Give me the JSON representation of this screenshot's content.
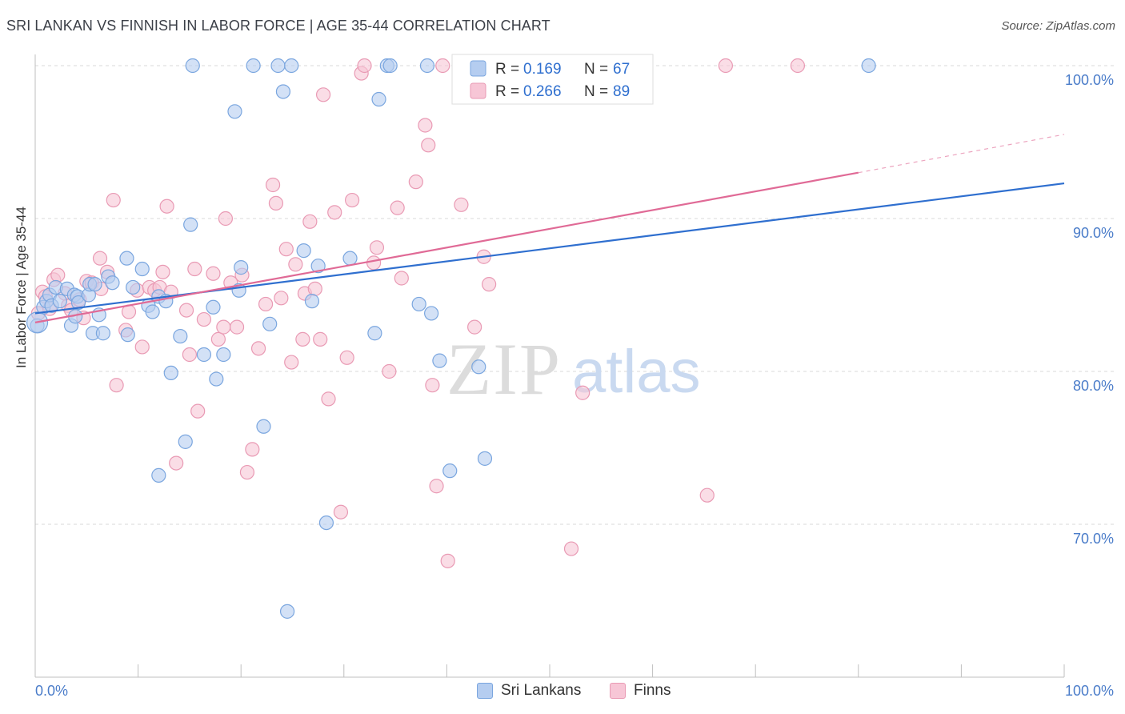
{
  "title": "SRI LANKAN VS FINNISH IN LABOR FORCE | AGE 35-44 CORRELATION CHART",
  "source": "Source: ZipAtlas.com",
  "watermark": {
    "zip": "ZIP",
    "atlas": "atlas"
  },
  "colors": {
    "blue_fill": "#b5cdf0",
    "blue_stroke": "#7aa6df",
    "blue_line": "#2f6fcf",
    "pink_fill": "#f7c6d6",
    "pink_stroke": "#e99ab4",
    "pink_line": "#e06a96",
    "tick_text": "#4a7cc9",
    "grid": "#d8d8d8"
  },
  "legend_top": [
    {
      "r_label": "R =",
      "r_value": "0.169",
      "n_label": "N =",
      "n_value": "67"
    },
    {
      "r_label": "R =",
      "r_value": "0.266",
      "n_label": "N =",
      "n_value": "89"
    }
  ],
  "legend_bottom": [
    "Sri Lankans",
    "Finns"
  ],
  "chart_data": {
    "type": "scatter",
    "title": "SRI LANKAN VS FINNISH IN LABOR FORCE | AGE 35-44 CORRELATION CHART",
    "xlabel": "",
    "ylabel": "In Labor Force | Age 35-44",
    "xlim": [
      0,
      100
    ],
    "ylim": [
      60,
      102
    ],
    "x_tick_labels": [
      "0.0%",
      "100.0%"
    ],
    "y_ticks": [
      70,
      80,
      90,
      100
    ],
    "y_tick_labels": [
      "70.0%",
      "80.0%",
      "90.0%",
      "100.0%"
    ],
    "grid": true,
    "legend_position": "top-center",
    "series": [
      {
        "name": "Sri Lankans",
        "r": 0.169,
        "n": 67,
        "trend": {
          "x": [
            0,
            100
          ],
          "y": [
            83.8,
            92.3
          ]
        },
        "points": [
          [
            0.2,
            83.0
          ],
          [
            0.8,
            84.2
          ],
          [
            1.1,
            84.6
          ],
          [
            1.4,
            85.0
          ],
          [
            1.6,
            84.3
          ],
          [
            2.0,
            85.5
          ],
          [
            2.4,
            84.6
          ],
          [
            3.1,
            85.4
          ],
          [
            3.5,
            83.0
          ],
          [
            3.8,
            85.0
          ],
          [
            3.9,
            83.6
          ],
          [
            4.1,
            84.9
          ],
          [
            4.2,
            84.5
          ],
          [
            5.2,
            85.0
          ],
          [
            5.3,
            85.7
          ],
          [
            5.6,
            82.5
          ],
          [
            5.8,
            85.7
          ],
          [
            6.2,
            83.7
          ],
          [
            6.6,
            82.5
          ],
          [
            7.1,
            86.2
          ],
          [
            7.5,
            85.8
          ],
          [
            8.9,
            87.4
          ],
          [
            9.0,
            82.4
          ],
          [
            9.5,
            85.5
          ],
          [
            10.4,
            86.7
          ],
          [
            11.0,
            84.3
          ],
          [
            11.4,
            83.9
          ],
          [
            12.0,
            84.9
          ],
          [
            12.7,
            84.6
          ],
          [
            13.2,
            79.9
          ],
          [
            14.1,
            82.3
          ],
          [
            14.6,
            75.4
          ],
          [
            15.1,
            89.6
          ],
          [
            16.4,
            81.1
          ],
          [
            17.3,
            84.2
          ],
          [
            17.6,
            79.5
          ],
          [
            18.3,
            81.1
          ],
          [
            19.4,
            97.0
          ],
          [
            19.8,
            85.3
          ],
          [
            20.0,
            86.8
          ],
          [
            21.2,
            100.0
          ],
          [
            22.2,
            76.4
          ],
          [
            22.8,
            83.1
          ],
          [
            23.6,
            100.0
          ],
          [
            24.1,
            98.3
          ],
          [
            24.5,
            64.3
          ],
          [
            24.9,
            100.0
          ],
          [
            26.1,
            87.9
          ],
          [
            26.9,
            84.6
          ],
          [
            27.5,
            86.9
          ],
          [
            28.3,
            70.1
          ],
          [
            30.6,
            87.4
          ],
          [
            33.0,
            82.5
          ],
          [
            33.4,
            97.8
          ],
          [
            34.2,
            100.0
          ],
          [
            34.5,
            100.0
          ],
          [
            37.3,
            84.4
          ],
          [
            38.1,
            100.0
          ],
          [
            38.5,
            83.8
          ],
          [
            39.3,
            80.7
          ],
          [
            40.3,
            73.5
          ],
          [
            41.6,
            100.0
          ],
          [
            43.1,
            80.3
          ],
          [
            43.7,
            74.3
          ],
          [
            81.0,
            100.0
          ],
          [
            15.3,
            100.0
          ],
          [
            12.0,
            73.2
          ]
        ]
      },
      {
        "name": "Finns",
        "r": 0.266,
        "n": 89,
        "trend": {
          "x": [
            0,
            80
          ],
          "y": [
            83.2,
            93.0
          ]
        },
        "trend_ext": {
          "x": [
            80,
            100
          ],
          "y": [
            93.0,
            95.5
          ]
        },
        "points": [
          [
            0.3,
            83.8
          ],
          [
            0.7,
            85.2
          ],
          [
            1.0,
            84.9
          ],
          [
            1.4,
            84.1
          ],
          [
            1.8,
            86.0
          ],
          [
            2.2,
            86.3
          ],
          [
            2.9,
            85.1
          ],
          [
            3.2,
            84.3
          ],
          [
            3.5,
            84.0
          ],
          [
            4.3,
            84.7
          ],
          [
            4.7,
            83.5
          ],
          [
            5.0,
            85.9
          ],
          [
            5.5,
            85.8
          ],
          [
            6.3,
            87.4
          ],
          [
            6.4,
            85.4
          ],
          [
            7.0,
            86.5
          ],
          [
            7.6,
            91.2
          ],
          [
            7.9,
            79.1
          ],
          [
            8.8,
            82.7
          ],
          [
            9.1,
            83.9
          ],
          [
            9.9,
            85.3
          ],
          [
            10.4,
            81.6
          ],
          [
            11.1,
            85.5
          ],
          [
            11.6,
            85.3
          ],
          [
            12.1,
            85.5
          ],
          [
            12.4,
            86.5
          ],
          [
            12.8,
            90.8
          ],
          [
            13.2,
            85.2
          ],
          [
            13.7,
            74.0
          ],
          [
            14.7,
            84.0
          ],
          [
            15.0,
            81.1
          ],
          [
            15.5,
            86.7
          ],
          [
            15.8,
            77.4
          ],
          [
            16.4,
            83.4
          ],
          [
            17.3,
            86.4
          ],
          [
            17.8,
            82.1
          ],
          [
            18.3,
            82.9
          ],
          [
            18.5,
            90.0
          ],
          [
            19.0,
            85.8
          ],
          [
            19.6,
            82.9
          ],
          [
            20.1,
            86.3
          ],
          [
            20.6,
            73.4
          ],
          [
            21.1,
            74.9
          ],
          [
            21.7,
            81.5
          ],
          [
            22.4,
            84.4
          ],
          [
            23.1,
            92.2
          ],
          [
            23.4,
            91.0
          ],
          [
            23.9,
            84.8
          ],
          [
            24.4,
            88.0
          ],
          [
            24.9,
            80.6
          ],
          [
            25.3,
            87.0
          ],
          [
            26.0,
            82.1
          ],
          [
            26.2,
            85.1
          ],
          [
            26.7,
            89.8
          ],
          [
            27.2,
            85.4
          ],
          [
            27.7,
            82.1
          ],
          [
            28.0,
            98.1
          ],
          [
            28.5,
            78.2
          ],
          [
            29.1,
            90.4
          ],
          [
            29.7,
            70.8
          ],
          [
            30.3,
            80.9
          ],
          [
            30.8,
            91.2
          ],
          [
            31.7,
            99.5
          ],
          [
            32.0,
            100.0
          ],
          [
            32.9,
            87.1
          ],
          [
            33.2,
            88.1
          ],
          [
            34.4,
            80.0
          ],
          [
            35.2,
            90.7
          ],
          [
            35.6,
            86.1
          ],
          [
            37.0,
            92.4
          ],
          [
            37.9,
            96.1
          ],
          [
            38.2,
            94.8
          ],
          [
            38.6,
            79.1
          ],
          [
            39.0,
            72.5
          ],
          [
            39.6,
            100.0
          ],
          [
            40.1,
            67.6
          ],
          [
            41.4,
            90.9
          ],
          [
            42.2,
            99.7
          ],
          [
            42.7,
            82.9
          ],
          [
            43.0,
            100.0
          ],
          [
            43.6,
            87.5
          ],
          [
            44.1,
            85.7
          ],
          [
            46.5,
            100.0
          ],
          [
            49.2,
            100.0
          ],
          [
            52.1,
            68.4
          ],
          [
            53.2,
            78.6
          ],
          [
            65.3,
            71.9
          ],
          [
            67.1,
            100.0
          ],
          [
            74.1,
            100.0
          ]
        ]
      }
    ]
  }
}
